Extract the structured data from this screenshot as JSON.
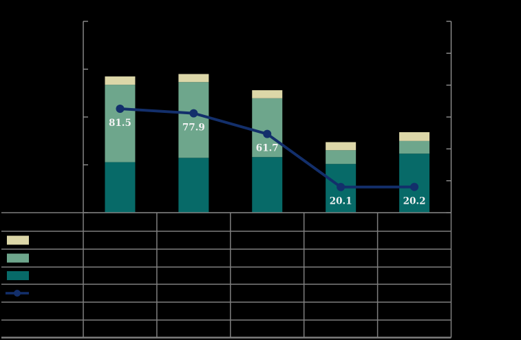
{
  "colors": {
    "background": "#000000",
    "bar_cream": "#dcd7a8",
    "bar_green": "#6ea68c",
    "bar_teal": "#076a68",
    "line_navy": "#132f6b",
    "grid_gray": "#7f7f7f",
    "axis_gray": "#9a9a9a",
    "label_text": "#f2f2f2"
  },
  "chart_data": {
    "type": "bar",
    "subtype": "stacked-bars-with-line-overlay",
    "title": "",
    "xlabel": "",
    "ylabel": "",
    "categories": [
      "",
      "",
      "",
      "",
      ""
    ],
    "series": [
      {
        "name": "teal-bottom-segment",
        "color_key": "bar_teal",
        "values": [
          39.6,
          43.0,
          43.6,
          38.2,
          46.3
        ],
        "values_estimated": true
      },
      {
        "name": "green-middle-segment",
        "color_key": "bar_green",
        "values": [
          60.7,
          59.4,
          46.1,
          10.8,
          9.9
        ],
        "values_estimated": true
      },
      {
        "name": "cream-top-segment",
        "color_key": "bar_cream",
        "values": [
          6.5,
          6.3,
          6.3,
          6.3,
          6.9
        ],
        "values_estimated": true
      }
    ],
    "line_series": {
      "name": "navy-trend-line",
      "color_key": "line_navy",
      "values": [
        81.5,
        77.9,
        61.7,
        20.1,
        20.2
      ],
      "labels": [
        "81.5",
        "77.9",
        "61.7",
        "20.1",
        "20.2"
      ]
    },
    "axes": {
      "ylim_right": [
        0,
        150
      ],
      "right_tick_count": 7,
      "left_tick_count": 5,
      "tick_labels_visible": false,
      "grid": false,
      "legend_position": "table-left-column"
    },
    "data_table": {
      "visible_text": "",
      "row_count": 7,
      "column_count": 6,
      "legend_rows": [
        {
          "swatch": "cream-swatch"
        },
        {
          "swatch": "green-swatch"
        },
        {
          "swatch": "teal-swatch"
        },
        {
          "swatch": "line-marker-swatch"
        }
      ]
    }
  }
}
